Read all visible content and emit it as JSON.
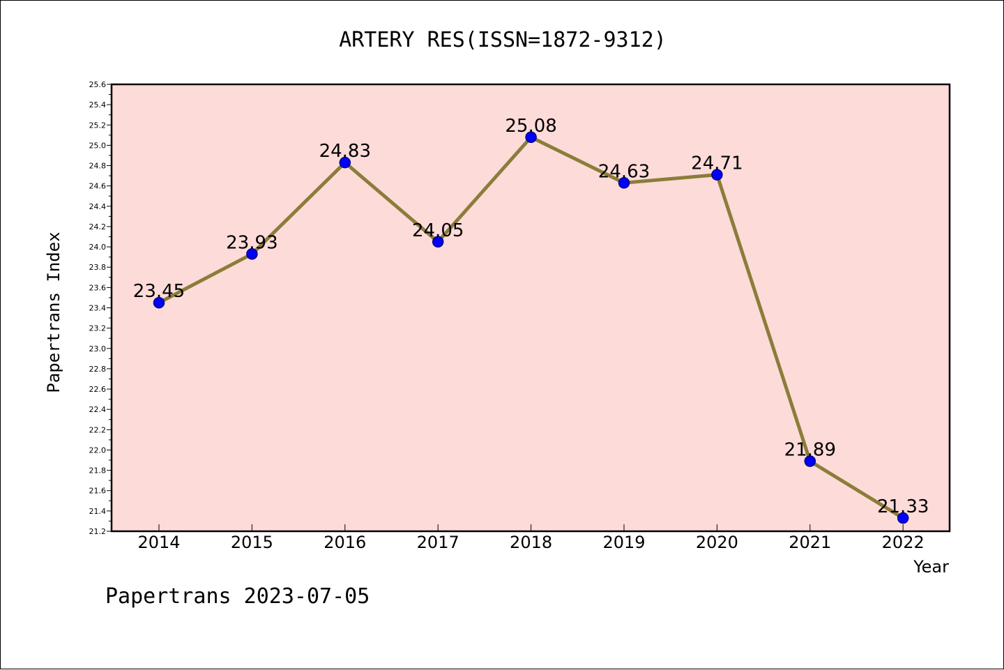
{
  "chart_data": {
    "type": "line",
    "title": "ARTERY RES(ISSN=1872-9312)",
    "xlabel": "Year",
    "ylabel": "Papertrans Index",
    "categories": [
      "2014",
      "2015",
      "2016",
      "2017",
      "2018",
      "2019",
      "2020",
      "2021",
      "2022"
    ],
    "series": [
      {
        "values": [
          23.45,
          23.93,
          24.83,
          24.05,
          25.08,
          24.63,
          24.71,
          21.89,
          21.33
        ],
        "labels": [
          "23.45",
          "23.93",
          "24.83",
          "24.05",
          "25.08",
          "24.63",
          "24.71",
          "21.89",
          "21.33"
        ]
      }
    ],
    "ylim": [
      21.2,
      25.6
    ],
    "yticks": [
      "21.2",
      "21.4",
      "21.6",
      "21.8",
      "22.0",
      "22.2",
      "22.4",
      "22.6",
      "22.8",
      "23.0",
      "23.2",
      "23.4",
      "23.6",
      "23.8",
      "24.0",
      "24.2",
      "24.4",
      "24.6",
      "24.8",
      "25.0",
      "25.2",
      "25.4",
      "25.6"
    ],
    "grid": false,
    "legend": "none",
    "colors": {
      "plot_background": "#fddbd9",
      "line": "#8b7d3a",
      "marker": "#0000ff",
      "marker_edge": "#000080"
    }
  },
  "footer": "Papertrans 2023-07-05"
}
